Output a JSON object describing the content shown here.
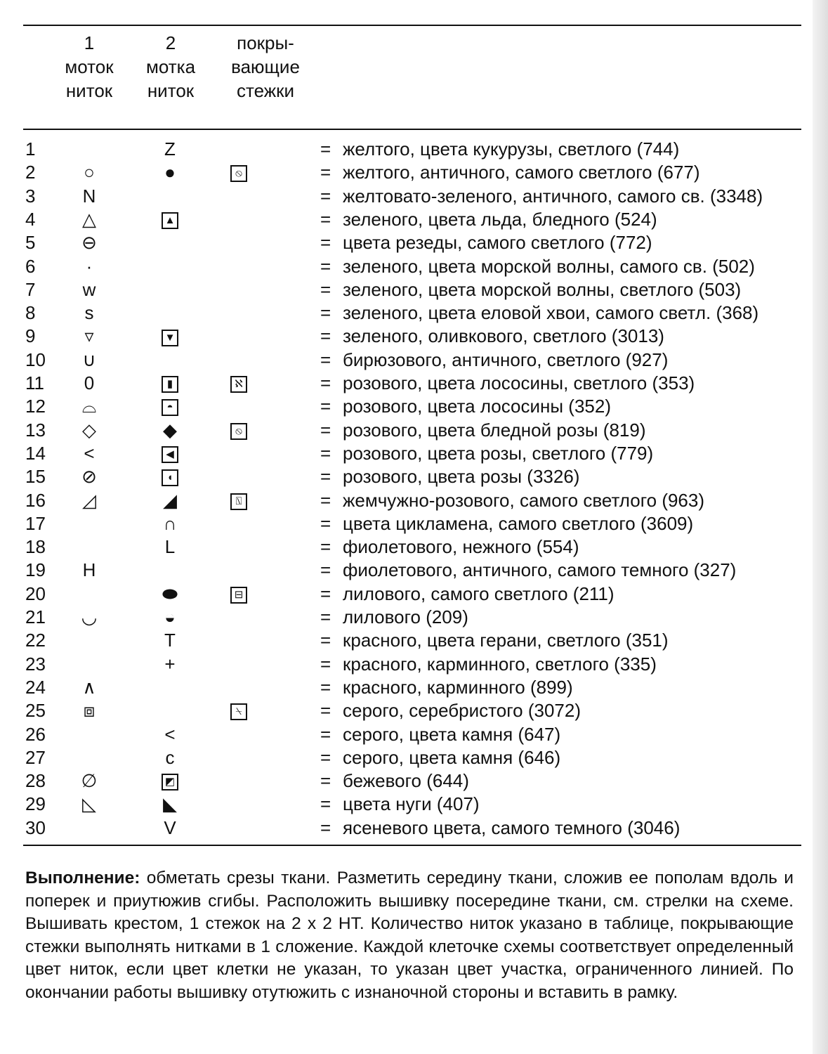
{
  "headers": {
    "col1": "1\nмоток\nниток",
    "col2": "2\nмотка\nниток",
    "col3": "покры-\nвающие\nстежки"
  },
  "rows": [
    {
      "n": "1",
      "s1": "",
      "s2": {
        "g": "Z",
        "box": false
      },
      "s3": null,
      "desc": "желтого, цвета кукурузы, светлого (744)"
    },
    {
      "n": "2",
      "s1": "○",
      "s2": {
        "g": "●",
        "box": false
      },
      "s3": "⦸",
      "desc": "желтого, античного, самого светлого (677)"
    },
    {
      "n": "3",
      "s1": "N",
      "s2": null,
      "s3": null,
      "desc": "желтовато-зеленого, античного, самого св. (3348)"
    },
    {
      "n": "4",
      "s1": "△",
      "s2": {
        "g": "▲",
        "box": true
      },
      "s3": null,
      "desc": "зеленого, цвета льда, бледного (524)"
    },
    {
      "n": "5",
      "s1": "⊖",
      "s2": null,
      "s3": null,
      "desc": "цвета резеды, самого светлого (772)"
    },
    {
      "n": "6",
      "s1": "·",
      "s2": null,
      "s3": null,
      "desc": "зеленого, цвета морской волны, самого св. (502)"
    },
    {
      "n": "7",
      "s1": "w",
      "s2": null,
      "s3": null,
      "desc": "зеленого, цвета морской волны, светлого (503)"
    },
    {
      "n": "8",
      "s1": "s",
      "s2": null,
      "s3": null,
      "desc": "зеленого, цвета еловой хвои, самого светл. (368)"
    },
    {
      "n": "9",
      "s1": "▿",
      "s2": {
        "g": "▼",
        "box": true
      },
      "s3": null,
      "desc": "зеленого, оливкового, светлого (3013)"
    },
    {
      "n": "10",
      "s1": "∪",
      "s2": null,
      "s3": null,
      "desc": "бирюзового, античного, светлого (927)"
    },
    {
      "n": "11",
      "s1": "0",
      "s2": {
        "g": "▮",
        "box": true
      },
      "s3": "ℵ",
      "desc": "розового, цвета лососины, светлого (353)"
    },
    {
      "n": "12",
      "s1": "⌓",
      "s2": {
        "g": "◓",
        "box": true
      },
      "s3": null,
      "desc": "розового, цвета лососины (352)"
    },
    {
      "n": "13",
      "s1": "◇",
      "s2": {
        "g": "◆",
        "box": false
      },
      "s3": "⦸",
      "desc": "розового, цвета бледной розы (819)"
    },
    {
      "n": "14",
      "s1": "<",
      "s2": {
        "g": "◀",
        "box": true
      },
      "s3": null,
      "desc": "розового, цвета розы, светлого (779)"
    },
    {
      "n": "15",
      "s1": "⊘",
      "s2": {
        "g": "◖",
        "box": true
      },
      "s3": null,
      "desc": "розового, цвета розы (3326)"
    },
    {
      "n": "16",
      "s1": "◿",
      "s2": {
        "g": "◢",
        "box": false
      },
      "s3": "⍂",
      "desc": "жемчужно-розового, самого светлого (963)"
    },
    {
      "n": "17",
      "s1": "",
      "s2": {
        "g": "∩",
        "box": false
      },
      "s3": null,
      "desc": "цвета цикламена, самого светлого (3609)"
    },
    {
      "n": "18",
      "s1": "",
      "s2": {
        "g": "L",
        "box": false
      },
      "s3": null,
      "desc": "фиолетового, нежного (554)"
    },
    {
      "n": "19",
      "s1": "H",
      "s2": null,
      "s3": null,
      "desc": "фиолетового, античного, самого темного (327)"
    },
    {
      "n": "20",
      "s1": "",
      "s2": {
        "g": "⬬",
        "box": false
      },
      "s3": "⊟",
      "desc": "лилового, самого светлого (211)"
    },
    {
      "n": "21",
      "s1": "◡",
      "s2": {
        "g": "◒",
        "box": false
      },
      "s3": null,
      "desc": "лилового (209)"
    },
    {
      "n": "22",
      "s1": "",
      "s2": {
        "g": "T",
        "box": false
      },
      "s3": null,
      "desc": "красного, цвета герани, светлого (351)"
    },
    {
      "n": "23",
      "s1": "",
      "s2": {
        "g": "+",
        "box": false
      },
      "s3": null,
      "desc": "красного, карминного, светлого (335)"
    },
    {
      "n": "24",
      "s1": "∧",
      "s2": null,
      "s3": null,
      "desc": "красного, карминного (899)"
    },
    {
      "n": "25",
      "s1": "⧈",
      "s2": null,
      "s3": "⍀",
      "desc": "серого, серебристого (3072)"
    },
    {
      "n": "26",
      "s1": "",
      "s2": {
        "g": "<",
        "box": false
      },
      "s3": null,
      "desc": "серого, цвета камня (647)"
    },
    {
      "n": "27",
      "s1": "",
      "s2": {
        "g": "c",
        "box": false
      },
      "s3": null,
      "desc": "серого, цвета камня (646)"
    },
    {
      "n": "28",
      "s1": "∅",
      "s2": {
        "g": "◩",
        "box": true
      },
      "s3": null,
      "desc": "бежевого (644)"
    },
    {
      "n": "29",
      "s1": "◺",
      "s2": {
        "g": "◣",
        "box": false
      },
      "s3": null,
      "desc": "цвета нуги (407)"
    },
    {
      "n": "30",
      "s1": "",
      "s2": {
        "g": "V",
        "box": false
      },
      "s3": null,
      "desc": "ясеневого цвета, самого темного (3046)"
    }
  ],
  "equals": "=",
  "instructions": {
    "label": "Выполнение:",
    "text": " обметать срезы ткани. Разметить середину ткани, сложив ее пополам вдоль и поперек и приутюжив сгибы. Расположить вышивку посередине ткани, см. стрелки на схеме. Вышивать крестом, 1 стежок на 2 х 2 НТ. Количество ниток указано в таблице, покрывающие стежки выполнять нитками в 1 сложение. Каждой клеточке схемы соответствует определенный цвет ниток, если цвет клетки не указан, то указан цвет участка, ограниченного линией. По окончании работы вышивку отутюжить с изнаночной стороны и вставить в рамку."
  }
}
